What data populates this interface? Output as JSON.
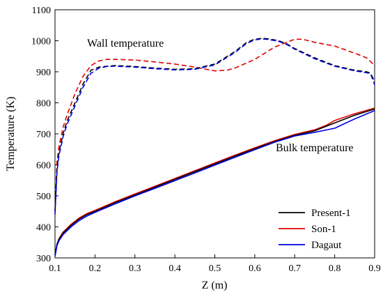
{
  "chart_data": {
    "type": "line",
    "title": "",
    "xlabel": "Z (m)",
    "ylabel": "Temperature (K)",
    "xlim": [
      0.1,
      0.9
    ],
    "ylim": [
      300,
      1100
    ],
    "xticks": [
      0.1,
      0.2,
      0.3,
      0.4,
      0.5,
      0.6,
      0.7,
      0.8,
      0.9
    ],
    "yticks": [
      300,
      400,
      500,
      600,
      700,
      800,
      900,
      1000,
      1100
    ],
    "grid": false,
    "legend": {
      "position": "bottom-right",
      "entries": [
        "Present-1",
        "Son-1",
        "Dagaut"
      ]
    },
    "annotations": [
      {
        "text": "Wall temperature",
        "near": "upper-left, above wall curves"
      },
      {
        "text": "Bulk temperature",
        "near": "right, below bulk curves"
      }
    ],
    "colors": {
      "Present-1": "#000000",
      "Son-1": "#e00000",
      "Dagaut": "#0000e0"
    },
    "series": [
      {
        "name": "Present-1",
        "group": "wall",
        "style": "dashed",
        "x": [
          0.1,
          0.105,
          0.11,
          0.12,
          0.13,
          0.15,
          0.17,
          0.19,
          0.21,
          0.23,
          0.25,
          0.3,
          0.35,
          0.4,
          0.45,
          0.5,
          0.55,
          0.58,
          0.6,
          0.62,
          0.64,
          0.66,
          0.68,
          0.7,
          0.75,
          0.8,
          0.85,
          0.88,
          0.89,
          0.9
        ],
        "y": [
          450,
          590,
          640,
          700,
          740,
          800,
          860,
          905,
          915,
          918,
          920,
          917,
          912,
          908,
          910,
          925,
          965,
          995,
          1005,
          1008,
          1005,
          1000,
          990,
          975,
          945,
          920,
          905,
          900,
          895,
          868
        ]
      },
      {
        "name": "Son-1",
        "group": "wall",
        "style": "dashed",
        "x": [
          0.1,
          0.105,
          0.11,
          0.12,
          0.13,
          0.15,
          0.17,
          0.19,
          0.21,
          0.23,
          0.25,
          0.3,
          0.35,
          0.4,
          0.45,
          0.5,
          0.53,
          0.55,
          0.6,
          0.65,
          0.7,
          0.72,
          0.75,
          0.8,
          0.85,
          0.88,
          0.9
        ],
        "y": [
          450,
          610,
          660,
          720,
          760,
          830,
          885,
          920,
          935,
          940,
          940,
          938,
          932,
          925,
          915,
          903,
          905,
          912,
          940,
          980,
          1005,
          1005,
          995,
          983,
          960,
          945,
          920
        ]
      },
      {
        "name": "Dagaut",
        "group": "wall",
        "style": "dashed",
        "x": [
          0.1,
          0.105,
          0.11,
          0.12,
          0.13,
          0.15,
          0.17,
          0.19,
          0.21,
          0.23,
          0.25,
          0.3,
          0.35,
          0.4,
          0.45,
          0.5,
          0.55,
          0.58,
          0.6,
          0.62,
          0.64,
          0.66,
          0.68,
          0.7,
          0.75,
          0.8,
          0.85,
          0.88,
          0.89,
          0.9
        ],
        "y": [
          440,
          580,
          630,
          690,
          730,
          790,
          850,
          895,
          912,
          917,
          918,
          915,
          910,
          906,
          908,
          922,
          962,
          992,
          1003,
          1006,
          1003,
          998,
          988,
          973,
          942,
          918,
          903,
          897,
          893,
          858
        ]
      },
      {
        "name": "Present-1",
        "group": "bulk",
        "style": "solid",
        "x": [
          0.1,
          0.105,
          0.11,
          0.12,
          0.14,
          0.16,
          0.18,
          0.2,
          0.25,
          0.3,
          0.35,
          0.4,
          0.45,
          0.5,
          0.55,
          0.6,
          0.65,
          0.7,
          0.75,
          0.8,
          0.85,
          0.9
        ],
        "y": [
          310,
          345,
          360,
          380,
          405,
          425,
          440,
          450,
          478,
          503,
          528,
          553,
          578,
          603,
          628,
          652,
          675,
          695,
          710,
          735,
          760,
          780
        ]
      },
      {
        "name": "Son-1",
        "group": "bulk",
        "style": "solid",
        "x": [
          0.1,
          0.105,
          0.11,
          0.12,
          0.14,
          0.16,
          0.18,
          0.2,
          0.25,
          0.3,
          0.35,
          0.4,
          0.45,
          0.5,
          0.55,
          0.6,
          0.65,
          0.7,
          0.75,
          0.78,
          0.8,
          0.85,
          0.9
        ],
        "y": [
          310,
          345,
          362,
          383,
          408,
          428,
          443,
          453,
          481,
          506,
          531,
          556,
          581,
          606,
          631,
          655,
          678,
          698,
          713,
          728,
          743,
          765,
          783
        ]
      },
      {
        "name": "Dagaut",
        "group": "bulk",
        "style": "solid",
        "x": [
          0.1,
          0.105,
          0.11,
          0.12,
          0.14,
          0.16,
          0.18,
          0.2,
          0.25,
          0.3,
          0.35,
          0.4,
          0.45,
          0.5,
          0.55,
          0.6,
          0.65,
          0.7,
          0.75,
          0.8,
          0.85,
          0.9
        ],
        "y": [
          305,
          340,
          355,
          375,
          400,
          420,
          435,
          447,
          474,
          500,
          524,
          549,
          574,
          599,
          624,
          649,
          673,
          693,
          705,
          718,
          748,
          775
        ]
      }
    ]
  }
}
